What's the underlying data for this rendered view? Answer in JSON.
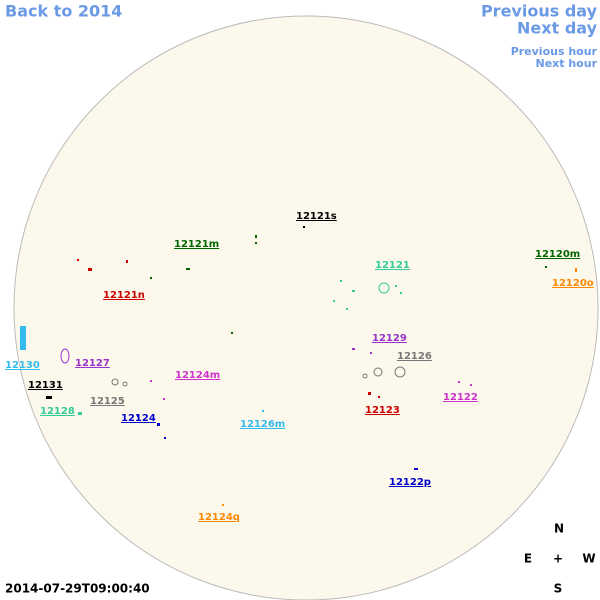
{
  "nav": {
    "back": "Back to 2014",
    "previous_day": "Previous day",
    "next_day": "Next day",
    "previous_hour": "Previous hour",
    "next_hour": "Next hour"
  },
  "regions": [
    "12121s",
    "12121m",
    "12120m",
    "12121",
    "12120o",
    "12121n",
    "12129",
    "12126",
    "12130",
    "12127",
    "12124m",
    "12131",
    "12125",
    "12122",
    "12128",
    "12123",
    "12124",
    "12126m",
    "12122p",
    "12124q"
  ],
  "compass": {
    "north": "N",
    "east": "E",
    "center": "+",
    "west": "W",
    "south": "S"
  },
  "timestamp": "2014-07-29T09:00:40"
}
